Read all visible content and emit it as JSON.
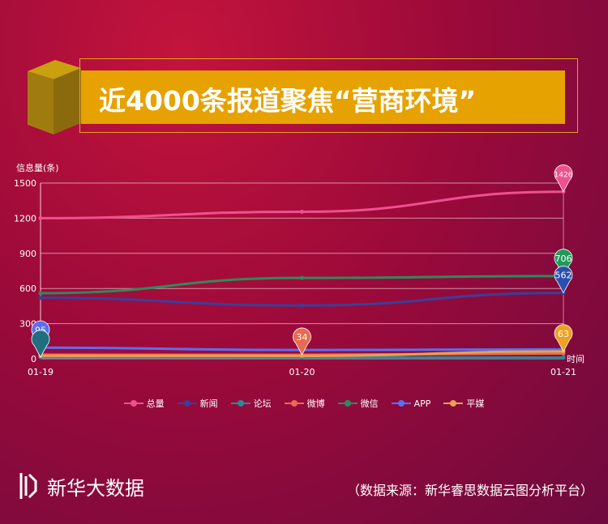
{
  "header": {
    "title": "近4000条报道聚焦“营商环境”"
  },
  "brand": {
    "name": "新华大数据"
  },
  "source": {
    "text": "（数据来源：新华睿思数据云图分析平台）"
  },
  "chart_data": {
    "type": "line",
    "ylabel": "信息量(条)",
    "xlabel": "时间",
    "categories": [
      "01-19",
      "01-20",
      "01-21"
    ],
    "ylim": [
      0,
      1500
    ],
    "yticks": [
      0,
      300,
      600,
      900,
      1200,
      1500
    ],
    "grid": true,
    "legend": "bottom",
    "series": [
      {
        "name": "总量",
        "color": "#f0508f",
        "values": [
          1200,
          1255,
          1426
        ]
      },
      {
        "name": "新闻",
        "color": "#3a3f9a",
        "values": [
          520,
          455,
          562
        ]
      },
      {
        "name": "论坛",
        "color": "#2a8a9a",
        "values": [
          14,
          12,
          10
        ]
      },
      {
        "name": "微博",
        "color": "#e86a50",
        "values": [
          35,
          34,
          45
        ]
      },
      {
        "name": "微信",
        "color": "#2e8a5c",
        "values": [
          560,
          690,
          706
        ]
      },
      {
        "name": "APP",
        "color": "#5a6ff0",
        "values": [
          95,
          75,
          80
        ]
      },
      {
        "name": "平媒",
        "color": "#e8a050",
        "values": [
          25,
          25,
          63
        ]
      }
    ],
    "markers": [
      {
        "series": "总量",
        "index": 2,
        "label": "1426",
        "color": "#f0508f"
      },
      {
        "series": "微信",
        "index": 2,
        "label": "706",
        "color": "#1f9a5a"
      },
      {
        "series": "新闻",
        "index": 2,
        "label": "562",
        "color": "#2a4fb0"
      },
      {
        "series": "平媒",
        "index": 2,
        "label": "63",
        "color": "#f0a020"
      },
      {
        "series": "微博",
        "index": 1,
        "label": "34",
        "color": "#e86a50"
      },
      {
        "series": "APP",
        "index": 0,
        "label": "95",
        "color": "#5a6ff0"
      },
      {
        "series": "论坛",
        "index": 0,
        "label": "",
        "color": "#1f6f80"
      }
    ]
  }
}
